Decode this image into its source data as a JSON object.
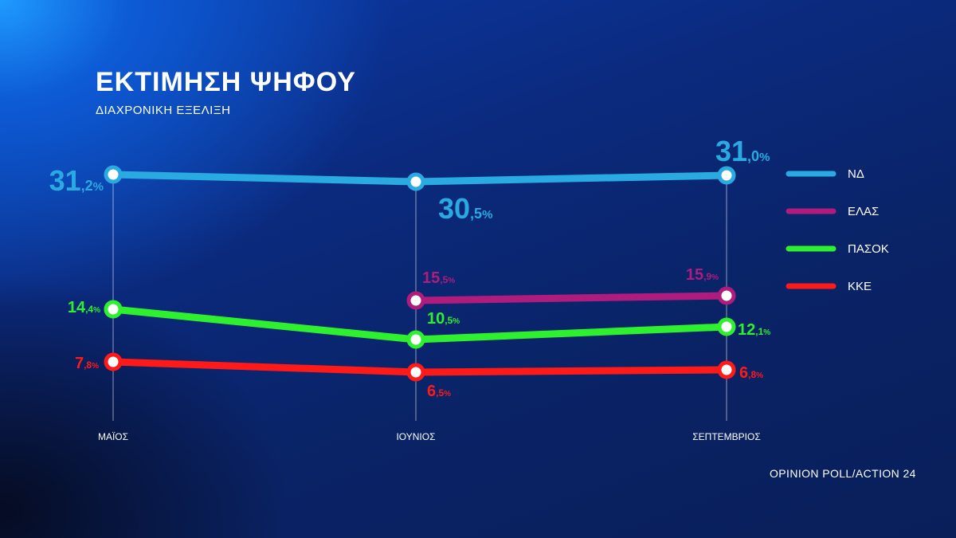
{
  "title": "ΕΚΤΙΜΗΣΗ ΨΗΦΟΥ",
  "subtitle": "ΔΙΑΧΡΟΝΙΚΗ ΕΞΕΛΙΞΗ",
  "source": "OPINION POLL/ACTION 24",
  "chart_data": {
    "type": "line",
    "categories": [
      "ΜΑΪΟΣ",
      "ΙΟΥΝΙΟΣ",
      "ΣΕΠΤΕΜΒΡΙΟΣ"
    ],
    "value_suffix": "%",
    "legend_position": "right",
    "grid": false,
    "series": [
      {
        "name": "ΝΔ",
        "color": "#29abe2",
        "values": [
          31.2,
          30.5,
          31.0
        ],
        "labels": [
          "31,2%",
          "30,5%",
          "31,0%"
        ]
      },
      {
        "name": "ΕΛΑΣ",
        "color": "#b01c7e",
        "values": [
          null,
          15.5,
          15.9
        ],
        "labels": [
          null,
          "15,5%",
          "15,9%"
        ]
      },
      {
        "name": "ΠΑΣΟΚ",
        "color": "#2ef02e",
        "values": [
          14.4,
          10.5,
          12.1
        ],
        "labels": [
          "14,4%",
          "10,5%",
          "12,1%"
        ]
      },
      {
        "name": "ΚΚΕ",
        "color": "#ff1a1a",
        "values": [
          7.8,
          6.5,
          6.8
        ],
        "labels": [
          "7,8%",
          "6,5%",
          "6,8%"
        ]
      }
    ]
  }
}
